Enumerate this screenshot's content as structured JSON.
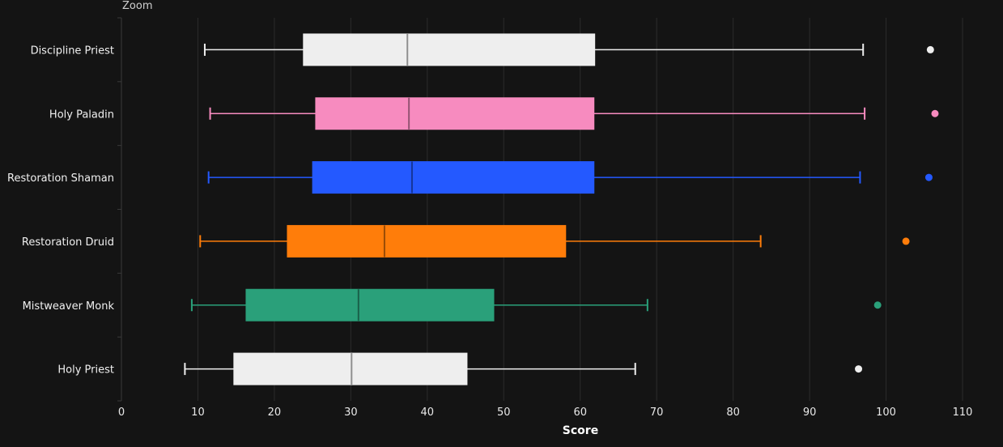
{
  "chart_data": {
    "type": "box",
    "orientation": "horizontal",
    "top_label": "Zoom",
    "xlabel": "Score",
    "ylabel": "",
    "xlim": [
      0,
      110
    ],
    "xticks": [
      0,
      10,
      20,
      30,
      40,
      50,
      60,
      70,
      80,
      90,
      100,
      110
    ],
    "grid": true,
    "categories": [
      "Discipline Priest",
      "Holy Paladin",
      "Restoration Shaman",
      "Restoration Druid",
      "Mistweaver Monk",
      "Holy Priest"
    ],
    "series": [
      {
        "category": "Discipline Priest",
        "color": "#eeeeee",
        "whisker_low": 10.9,
        "q1": 23.8,
        "median": 37.4,
        "q3": 61.9,
        "whisker_high": 97.0,
        "outliers": [
          105.8
        ]
      },
      {
        "category": "Holy Paladin",
        "color": "#f78bbf",
        "whisker_low": 11.6,
        "q1": 25.4,
        "median": 37.6,
        "q3": 61.8,
        "whisker_high": 97.2,
        "outliers": [
          106.4
        ]
      },
      {
        "category": "Restoration Shaman",
        "color": "#2459ff",
        "whisker_low": 11.4,
        "q1": 25.0,
        "median": 38.0,
        "q3": 61.8,
        "whisker_high": 96.6,
        "outliers": [
          105.6
        ]
      },
      {
        "category": "Restoration Druid",
        "color": "#ff7d0a",
        "whisker_low": 10.3,
        "q1": 21.7,
        "median": 34.4,
        "q3": 58.1,
        "whisker_high": 83.6,
        "outliers": [
          102.6
        ]
      },
      {
        "category": "Mistweaver Monk",
        "color": "#2aa07a",
        "whisker_low": 9.2,
        "q1": 16.3,
        "median": 31.0,
        "q3": 48.7,
        "whisker_high": 68.8,
        "outliers": [
          98.9
        ]
      },
      {
        "category": "Holy Priest",
        "color": "#eeeeee",
        "whisker_low": 8.3,
        "q1": 14.7,
        "median": 30.1,
        "q3": 45.2,
        "whisker_high": 67.2,
        "outliers": [
          96.4
        ]
      }
    ]
  }
}
